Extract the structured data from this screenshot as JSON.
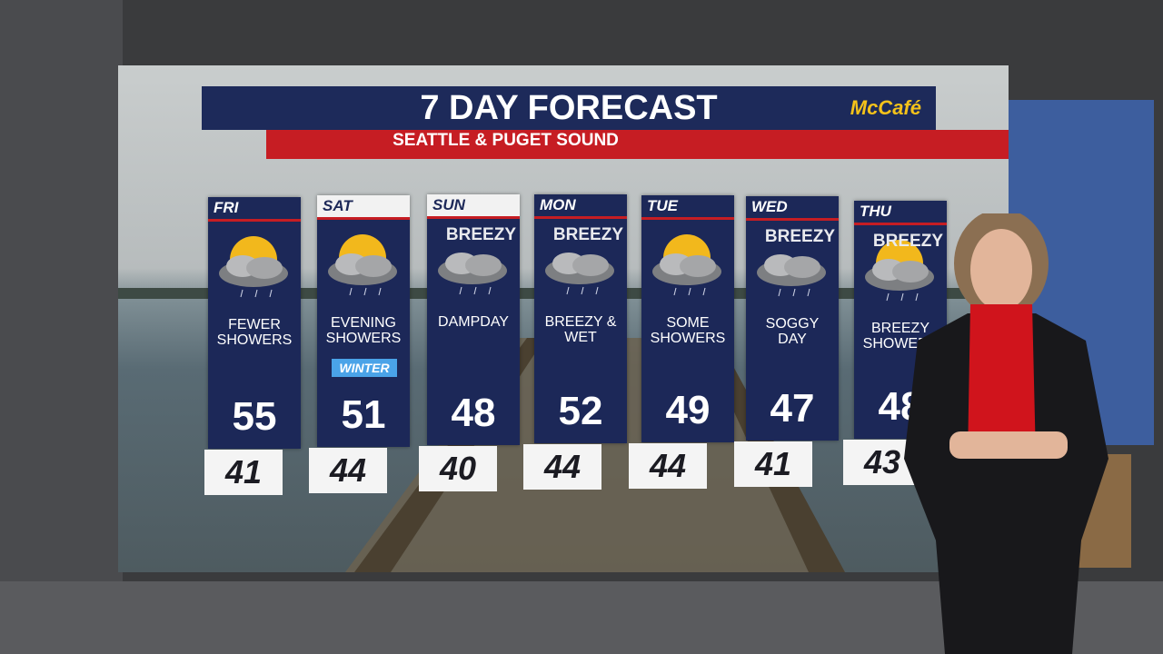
{
  "header": {
    "title": "7 DAY FORECAST",
    "subtitle": "SEATTLE & PUGET SOUND",
    "sponsor": "McCafé"
  },
  "days": [
    {
      "day": "FRI",
      "condition": "FEWER SHOWERS",
      "high": 55,
      "low": 41
    },
    {
      "day": "SAT",
      "condition": "EVENING SHOWERS",
      "badge": "WINTER",
      "high": 51,
      "low": 44
    },
    {
      "day": "SUN",
      "tag": "BREEZY",
      "condition": "DAMPDAY",
      "high": 48,
      "low": 40
    },
    {
      "day": "MON",
      "tag": "BREEZY",
      "condition": "BREEZY & WET",
      "high": 52,
      "low": 44
    },
    {
      "day": "TUE",
      "condition": "SOME SHOWERS",
      "high": 49,
      "low": 44
    },
    {
      "day": "WED",
      "tag": "BREEZY",
      "condition": "SOGGY DAY",
      "high": 47,
      "low": 41
    },
    {
      "day": "THU",
      "tag": "BREEZY",
      "condition": "BREEZY SHOWERS",
      "high": 48,
      "low": 43
    }
  ]
}
